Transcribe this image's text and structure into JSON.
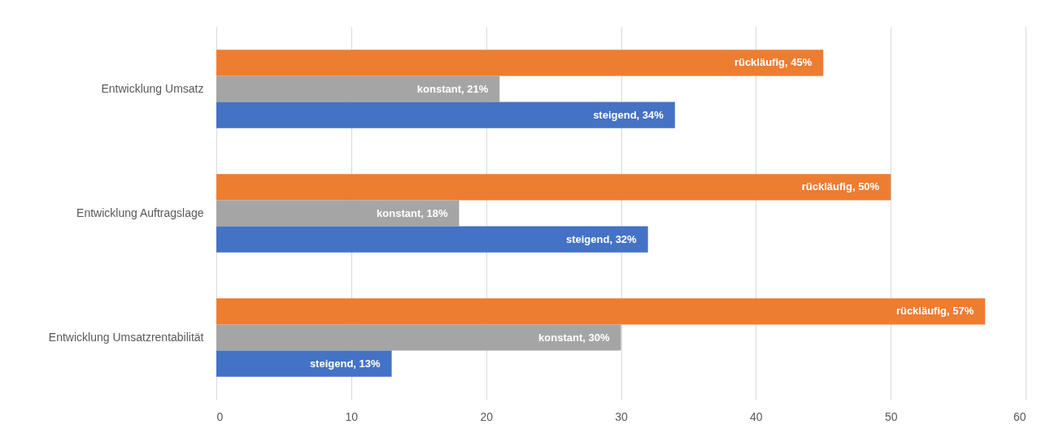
{
  "chart_data": {
    "type": "bar",
    "orientation": "horizontal",
    "categories": [
      "Entwicklung Umsatz",
      "Entwicklung Auftragslage",
      "Entwicklung Umsatzrentabilität"
    ],
    "series": [
      {
        "color": "#ed7d31",
        "values": [
          45,
          50,
          57
        ],
        "value_labels": [
          "rückläufig, 45%",
          "rückläufig, 50%",
          "rückläufig, 57%"
        ]
      },
      {
        "color": "#a5a5a5",
        "values": [
          21,
          18,
          30
        ],
        "value_labels": [
          "konstant, 21%",
          "konstant, 18%",
          "konstant, 30%"
        ]
      },
      {
        "color": "#4472c4",
        "values": [
          34,
          32,
          13
        ],
        "value_labels": [
          "steigend, 34%",
          "steigend, 32%",
          "steigend, 13%"
        ]
      }
    ],
    "xlim": [
      0,
      60
    ],
    "xticks": [
      0,
      10,
      20,
      30,
      40,
      50,
      60
    ],
    "grid": "x",
    "legend": false
  }
}
